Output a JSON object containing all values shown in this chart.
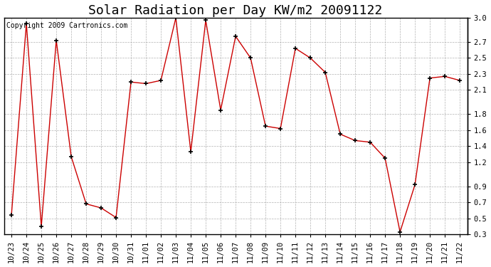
{
  "title": "Solar Radiation per Day KW/m2 20091122",
  "copyright_text": "Copyright 2009 Cartronics.com",
  "labels": [
    "10/23",
    "10/24",
    "10/25",
    "10/26",
    "10/27",
    "10/28",
    "10/29",
    "10/30",
    "10/31",
    "11/01",
    "11/02",
    "11/03",
    "11/04",
    "11/05",
    "11/06",
    "11/07",
    "11/08",
    "11/09",
    "11/10",
    "11/11",
    "11/12",
    "11/13",
    "11/14",
    "11/15",
    "11/16",
    "11/17",
    "11/18",
    "11/19",
    "11/20",
    "11/21",
    "11/22"
  ],
  "values": [
    0.54,
    2.93,
    0.4,
    2.72,
    1.27,
    0.68,
    0.63,
    0.51,
    2.2,
    2.18,
    2.22,
    3.0,
    1.33,
    2.97,
    1.85,
    2.77,
    2.5,
    1.65,
    1.62,
    2.62,
    2.5,
    2.32,
    1.55,
    1.47,
    1.45,
    1.25,
    0.33,
    0.92,
    2.25,
    2.27,
    2.22
  ],
  "line_color": "#cc0000",
  "marker": "+",
  "marker_size": 5,
  "marker_color": "#000000",
  "bg_color": "#ffffff",
  "grid_color": "#aaaaaa",
  "ylim_min": 0.3,
  "ylim_max": 3.0,
  "yticks": [
    3.0,
    2.7,
    2.5,
    2.3,
    2.1,
    1.8,
    1.6,
    1.4,
    1.2,
    0.9,
    0.7,
    0.5,
    0.3
  ],
  "title_fontsize": 13,
  "tick_fontsize": 7.5,
  "copyright_fontsize": 7
}
